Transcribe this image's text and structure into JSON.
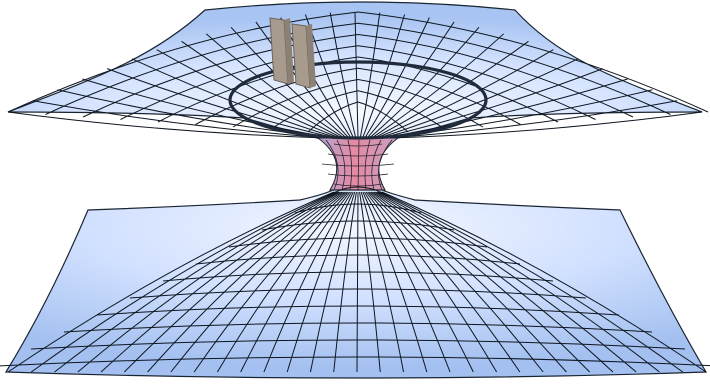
{
  "figure": {
    "subject": "wormhole-embedding-diagram",
    "colors": {
      "sheet_light": "#f3f7ff",
      "sheet_mid": "#c9dcff",
      "sheet_edge": "#9ebcf0",
      "grid_line": "#0e1620",
      "throat": "#c89ab3",
      "throat_core": "#e48aa3",
      "ring": "#1f2a3a",
      "plates": "#a39789",
      "plates_edge": "#6e645a"
    }
  }
}
